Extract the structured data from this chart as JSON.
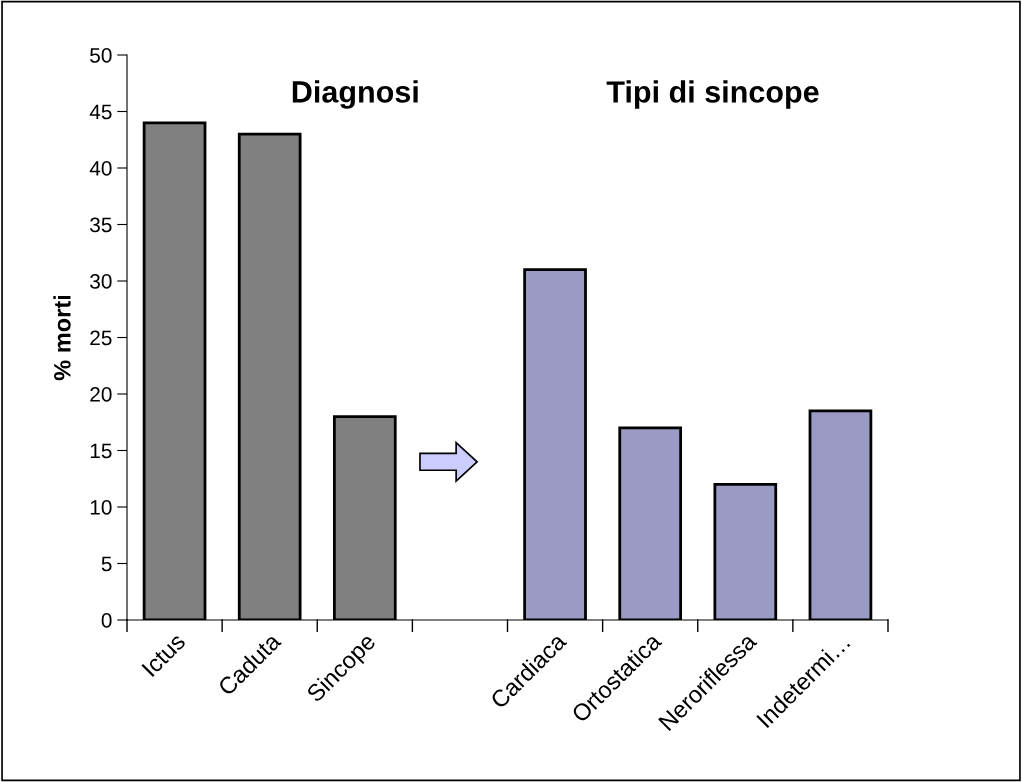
{
  "chart_data": {
    "type": "bar",
    "ylabel": "% morti",
    "categories": [
      "Ictus",
      "Caduta",
      "Sincope",
      null,
      "Cardiaca",
      "Ortostatica",
      "Neroriflessa",
      "Indetermi…"
    ],
    "values": [
      44,
      43,
      18,
      null,
      31,
      17,
      12,
      18.5
    ],
    "colors": [
      "#808080",
      "#808080",
      "#808080",
      "#808080",
      "#9a9ac4",
      "#9a9ac4",
      "#9a9ac4",
      "#9a9ac4"
    ],
    "ylim": [
      0,
      50
    ],
    "yticks": [
      0,
      5,
      10,
      15,
      20,
      25,
      30,
      35,
      40,
      45,
      50
    ],
    "annotations": [
      "Diagnosi",
      "Tipi di sincope"
    ],
    "grid": false
  }
}
